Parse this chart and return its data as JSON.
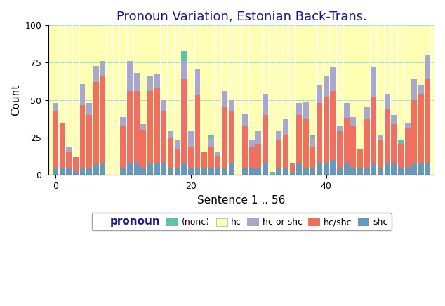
{
  "title": "Pronoun Variation, Estonian Back-Trans.",
  "xlabel": "Sentence 1 .. 56",
  "ylabel": "Count",
  "ylim": [
    0,
    100
  ],
  "yticks": [
    0,
    25,
    50,
    75,
    100
  ],
  "xticks": [
    0,
    20,
    40
  ],
  "n_sentences": 56,
  "colors": {
    "nonc": "#5fc4a0",
    "hc": "#ffffb3",
    "hc_or_shc": "#a8a8cc",
    "hcshc": "#f07060",
    "shc": "#6699bb"
  },
  "nonc": [
    0,
    0,
    0,
    0,
    0,
    0,
    0,
    0,
    0,
    0,
    0,
    0,
    0,
    0,
    0,
    0,
    0,
    0,
    0,
    7,
    0,
    0,
    0,
    2,
    0,
    0,
    0,
    0,
    0,
    0,
    0,
    0,
    2,
    0,
    0,
    0,
    0,
    0,
    2,
    0,
    0,
    0,
    0,
    0,
    0,
    0,
    0,
    0,
    0,
    0,
    0,
    2,
    0,
    0,
    0,
    0
  ],
  "hc_or_shc": [
    5,
    0,
    4,
    0,
    14,
    8,
    11,
    10,
    0,
    0,
    6,
    20,
    12,
    4,
    10,
    9,
    7,
    4,
    6,
    12,
    10,
    18,
    0,
    6,
    2,
    11,
    7,
    0,
    8,
    4,
    8,
    14,
    0,
    6,
    10,
    0,
    8,
    12,
    6,
    12,
    14,
    16,
    4,
    10,
    6,
    0,
    8,
    20,
    4,
    10,
    6,
    0,
    4,
    14,
    6,
    16
  ],
  "hcshc": [
    38,
    30,
    10,
    10,
    42,
    35,
    55,
    58,
    0,
    0,
    28,
    48,
    48,
    25,
    48,
    50,
    35,
    20,
    12,
    56,
    14,
    48,
    10,
    14,
    8,
    40,
    35,
    0,
    28,
    14,
    16,
    32,
    0,
    18,
    22,
    6,
    32,
    32,
    14,
    40,
    44,
    46,
    24,
    30,
    28,
    12,
    32,
    44,
    18,
    36,
    26,
    16,
    26,
    42,
    46,
    56
  ],
  "shc": [
    5,
    5,
    5,
    2,
    5,
    5,
    7,
    8,
    0,
    0,
    5,
    8,
    8,
    5,
    8,
    8,
    8,
    5,
    5,
    8,
    5,
    5,
    5,
    5,
    5,
    5,
    8,
    0,
    5,
    5,
    5,
    8,
    0,
    5,
    5,
    2,
    8,
    5,
    5,
    8,
    8,
    10,
    5,
    8,
    5,
    5,
    5,
    8,
    5,
    8,
    8,
    5,
    5,
    8,
    8,
    8
  ]
}
